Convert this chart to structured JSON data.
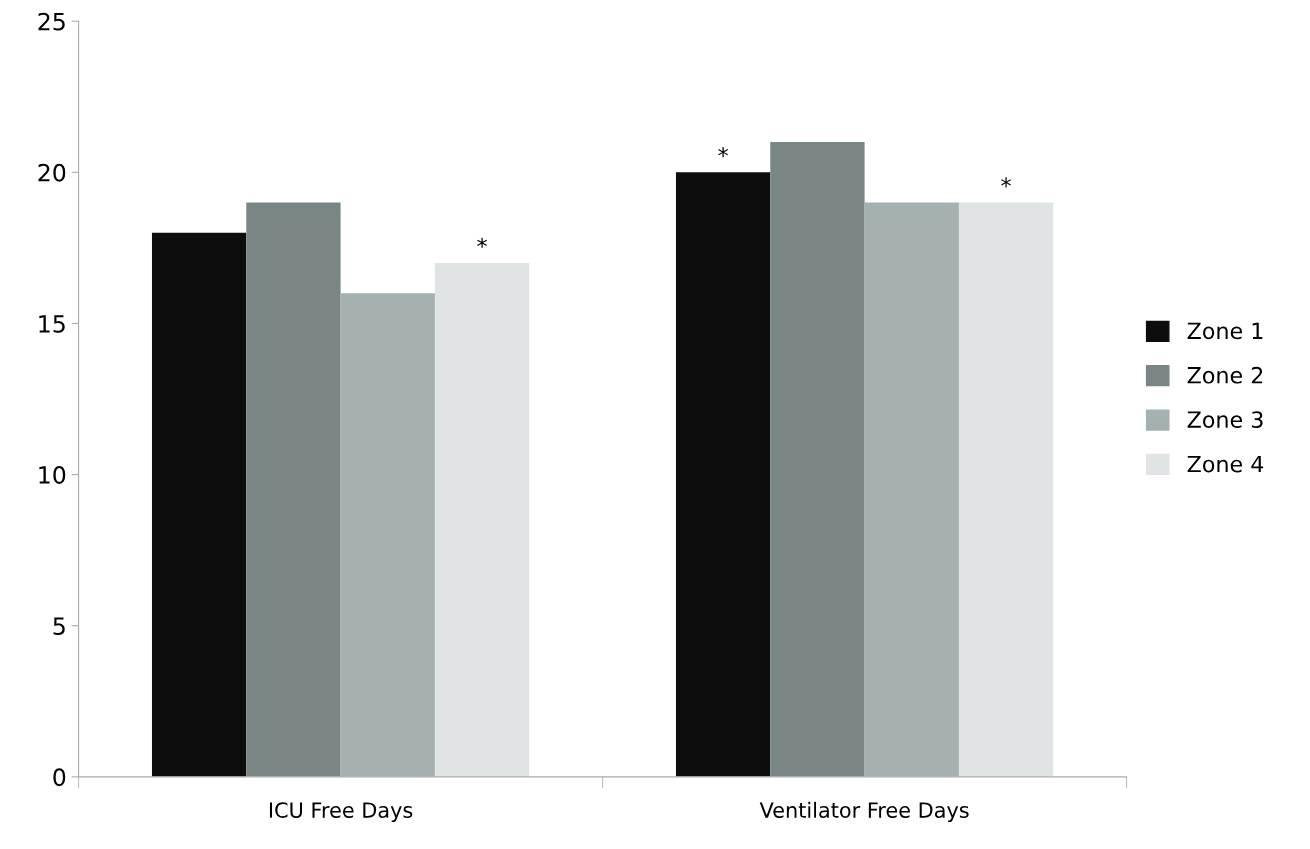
{
  "chart_data": {
    "type": "bar",
    "categories": [
      "ICU Free Days",
      "Ventilator Free Days"
    ],
    "series": [
      {
        "name": "Zone 1",
        "color": "#0d0d0d",
        "values": [
          18,
          20
        ],
        "value_labels": [
          null,
          "*"
        ]
      },
      {
        "name": "Zone 2",
        "color": "#7a8585",
        "values": [
          19,
          21
        ]
      },
      {
        "name": "Zone 3",
        "color": "#a5b0b0",
        "values": [
          16,
          19
        ]
      },
      {
        "name": "Zone 4",
        "color": "#e0e4e4",
        "values": [
          17,
          19
        ],
        "value_labels": [
          "*",
          "*"
        ]
      }
    ],
    "ylim": [
      0,
      25
    ],
    "yticks": [
      0,
      5,
      10,
      15,
      20,
      25
    ],
    "grid": false,
    "legend": "right"
  }
}
